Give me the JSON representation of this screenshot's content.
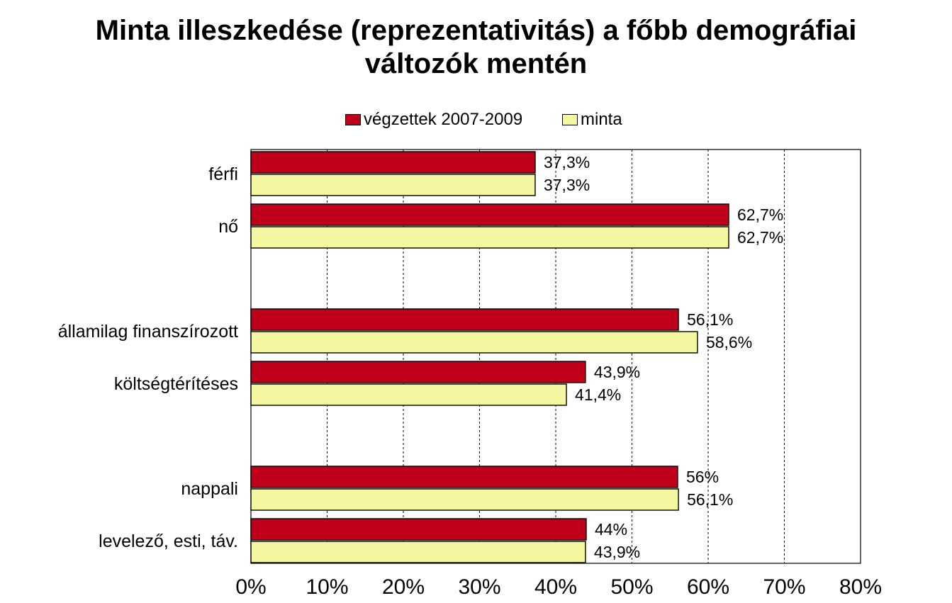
{
  "chart_data": {
    "type": "bar",
    "orientation": "horizontal",
    "title_lines": [
      "Minta illeszkedése (reprezentativitás) a főbb demográfiai",
      "változók mentén"
    ],
    "legend_position": "top",
    "categories": [
      "férfi",
      "nő",
      "államilag finanszírozott",
      "költségtérítéses",
      "nappali",
      "levelező, esti, táv."
    ],
    "groups": [
      [
        "férfi",
        "nő"
      ],
      [
        "államilag finanszírozott",
        "költségtérítéses"
      ],
      [
        "nappali",
        "levelező, esti, táv."
      ]
    ],
    "series": [
      {
        "name": "végzettek 2007-2009",
        "color": "#c0001a",
        "values": [
          37.3,
          62.7,
          56.1,
          43.9,
          56,
          44
        ],
        "labels": [
          "37,3%",
          "62,7%",
          "56,1%",
          "43,9%",
          "56%",
          "44%"
        ]
      },
      {
        "name": "minta",
        "color": "#f4f7a0",
        "values": [
          37.3,
          62.7,
          58.6,
          41.4,
          56.1,
          43.9
        ],
        "labels": [
          "37,3%",
          "62,7%",
          "58,6%",
          "41,4%",
          "56,1%",
          "43,9%"
        ]
      }
    ],
    "xlim": [
      0,
      80
    ],
    "xticks": [
      0,
      10,
      20,
      30,
      40,
      50,
      60,
      70,
      80
    ],
    "xtick_labels": [
      "0%",
      "10%",
      "20%",
      "30%",
      "40%",
      "50%",
      "60%",
      "70%",
      "80%"
    ],
    "grid": "vertical-dashed",
    "xlabel": "",
    "ylabel": ""
  }
}
